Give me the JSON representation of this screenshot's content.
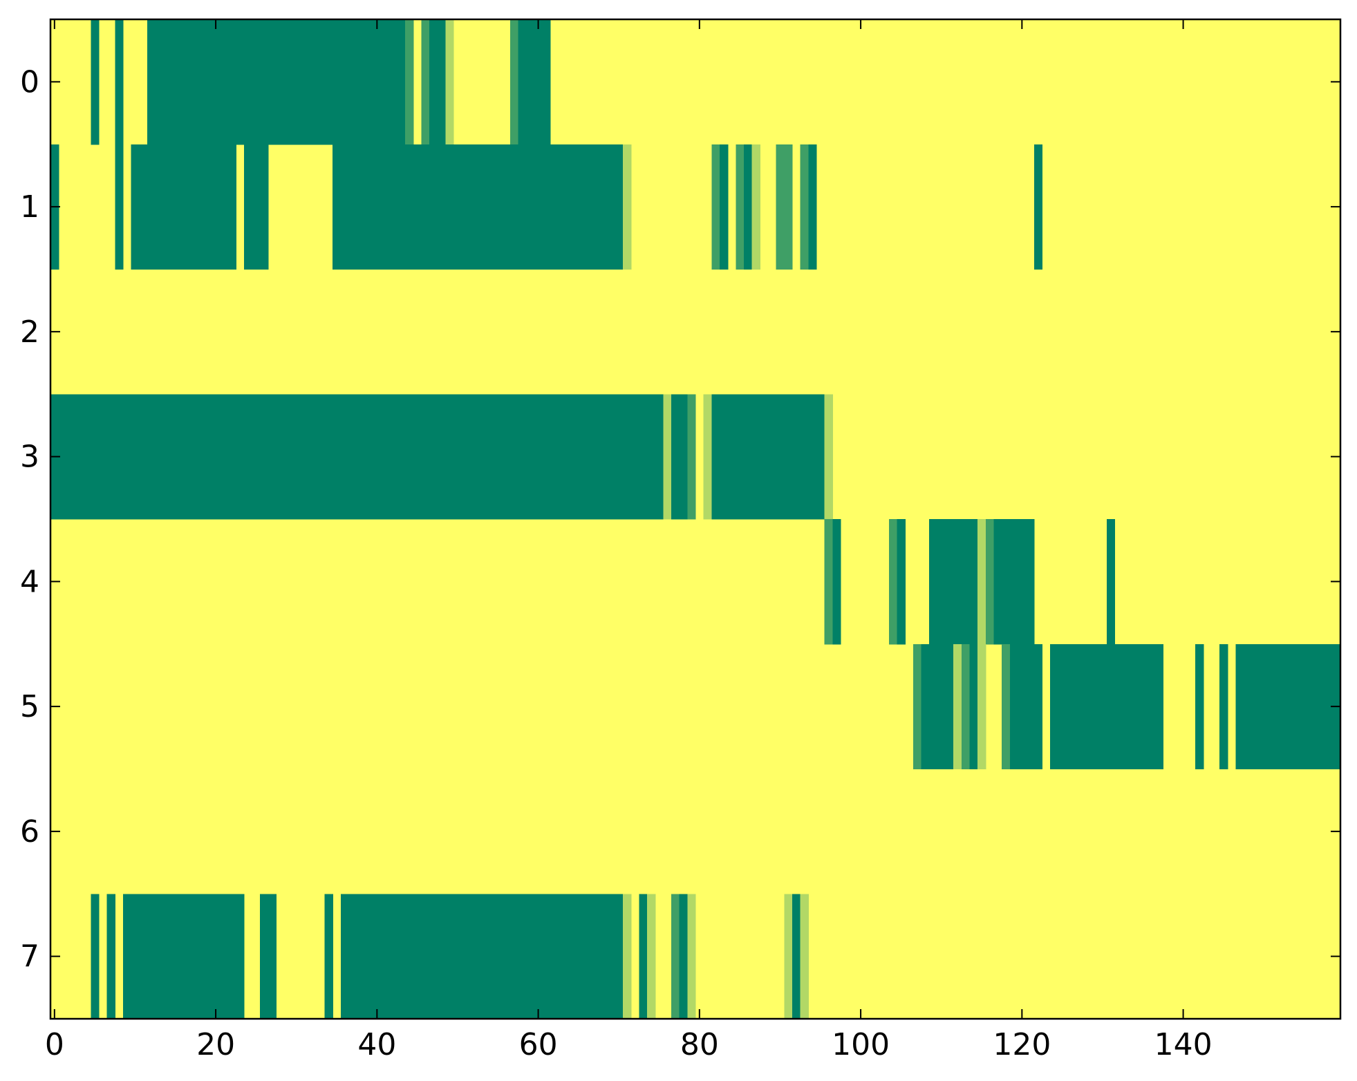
{
  "chart_data": {
    "type": "heatmap",
    "title": "",
    "xlabel": "",
    "ylabel": "",
    "x_range": [
      -0.5,
      159.5
    ],
    "y_range": [
      -0.5,
      7.5
    ],
    "x_ticks": [
      0,
      20,
      40,
      60,
      80,
      100,
      120,
      140
    ],
    "y_ticks": [
      0,
      1,
      2,
      3,
      4,
      5,
      6,
      7
    ],
    "grid": false,
    "colormap": "summer_r",
    "colors": {
      "level_0": "#ffff66",
      "level_1": "#b2d866",
      "level_2": "#3f9f66",
      "level_3": "#008066",
      "frame": "#000000",
      "background": "#ffffff"
    },
    "value_levels": [
      0,
      1,
      2,
      3
    ],
    "background_value": 0,
    "rows": [
      {
        "row": 0,
        "segments": [
          [
            5,
            5,
            3
          ],
          [
            8,
            8,
            3
          ],
          [
            12,
            43,
            3
          ],
          [
            44,
            44,
            2
          ],
          [
            46,
            46,
            2
          ],
          [
            47,
            48,
            3
          ],
          [
            49,
            49,
            1
          ],
          [
            57,
            57,
            2
          ],
          [
            58,
            61,
            3
          ]
        ]
      },
      {
        "row": 1,
        "segments": [
          [
            0,
            0,
            3
          ],
          [
            8,
            8,
            3
          ],
          [
            10,
            22,
            3
          ],
          [
            24,
            26,
            3
          ],
          [
            35,
            70,
            3
          ],
          [
            71,
            71,
            1
          ],
          [
            82,
            82,
            2
          ],
          [
            83,
            83,
            3
          ],
          [
            85,
            85,
            2
          ],
          [
            86,
            86,
            3
          ],
          [
            87,
            87,
            1
          ],
          [
            90,
            91,
            2
          ],
          [
            93,
            93,
            2
          ],
          [
            94,
            94,
            3
          ],
          [
            122,
            122,
            3
          ]
        ]
      },
      {
        "row": 2,
        "segments": []
      },
      {
        "row": 3,
        "segments": [
          [
            0,
            75,
            3
          ],
          [
            76,
            76,
            1
          ],
          [
            77,
            78,
            3
          ],
          [
            79,
            79,
            2
          ],
          [
            81,
            81,
            1
          ],
          [
            82,
            95,
            3
          ],
          [
            96,
            96,
            1
          ]
        ]
      },
      {
        "row": 4,
        "segments": [
          [
            96,
            96,
            2
          ],
          [
            97,
            97,
            3
          ],
          [
            104,
            104,
            2
          ],
          [
            105,
            105,
            3
          ],
          [
            109,
            114,
            3
          ],
          [
            115,
            115,
            1
          ],
          [
            116,
            116,
            2
          ],
          [
            117,
            121,
            3
          ],
          [
            131,
            131,
            3
          ]
        ]
      },
      {
        "row": 5,
        "segments": [
          [
            107,
            107,
            2
          ],
          [
            108,
            111,
            3
          ],
          [
            112,
            112,
            1
          ],
          [
            113,
            113,
            2
          ],
          [
            114,
            114,
            3
          ],
          [
            115,
            115,
            1
          ],
          [
            118,
            118,
            2
          ],
          [
            119,
            122,
            3
          ],
          [
            124,
            137,
            3
          ],
          [
            142,
            142,
            3
          ],
          [
            145,
            145,
            3
          ],
          [
            147,
            159,
            3
          ]
        ]
      },
      {
        "row": 6,
        "segments": []
      },
      {
        "row": 7,
        "segments": [
          [
            5,
            5,
            3
          ],
          [
            7,
            7,
            3
          ],
          [
            9,
            23,
            3
          ],
          [
            26,
            27,
            3
          ],
          [
            34,
            34,
            3
          ],
          [
            36,
            70,
            3
          ],
          [
            71,
            71,
            1
          ],
          [
            73,
            73,
            3
          ],
          [
            74,
            74,
            1
          ],
          [
            77,
            77,
            2
          ],
          [
            78,
            78,
            3
          ],
          [
            79,
            79,
            1
          ],
          [
            91,
            91,
            1
          ],
          [
            92,
            92,
            3
          ],
          [
            93,
            93,
            1
          ]
        ]
      }
    ]
  }
}
